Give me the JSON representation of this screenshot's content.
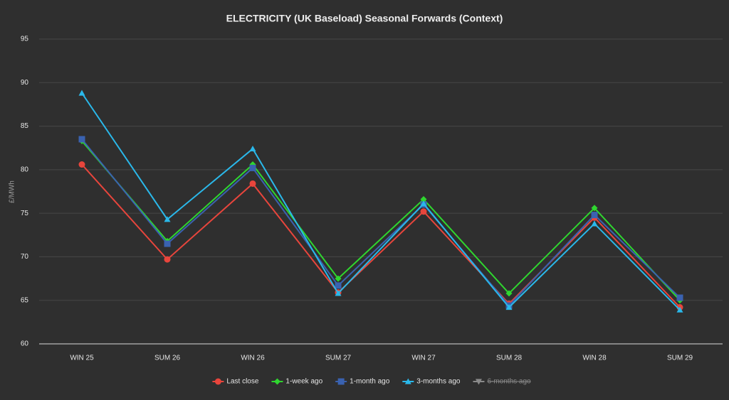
{
  "chart_data": {
    "type": "line",
    "title": "ELECTRICITY (UK Baseload) Seasonal Forwards (Context)",
    "y_label": "£/MWh",
    "categories": [
      "WIN 25",
      "SUM 26",
      "WIN 26",
      "SUM 27",
      "WIN 27",
      "SUM 28",
      "WIN 28",
      "SUM 29"
    ],
    "ylim": [
      60,
      95
    ],
    "yticks": [
      60,
      65,
      70,
      75,
      80,
      85,
      90,
      95
    ],
    "grid": true,
    "legend": "bottom",
    "series": [
      {
        "name": "Last close",
        "color": "#e8453c",
        "marker": "circle",
        "values": [
          80.6,
          69.7,
          78.4,
          65.9,
          75.2,
          64.6,
          74.5,
          64.2
        ]
      },
      {
        "name": "1-week ago",
        "color": "#2fd62f",
        "marker": "diamond",
        "values": [
          83.3,
          71.8,
          80.6,
          67.5,
          76.6,
          65.8,
          75.6,
          65.0
        ]
      },
      {
        "name": "1-month ago",
        "color": "#3a62b0",
        "marker": "square",
        "values": [
          83.5,
          71.5,
          80.2,
          66.7,
          76.0,
          64.4,
          74.8,
          65.3
        ]
      },
      {
        "name": "3-months ago",
        "color": "#2ab8ea",
        "marker": "triangle",
        "values": [
          88.8,
          74.3,
          82.4,
          65.8,
          76.1,
          64.2,
          73.8,
          63.9
        ]
      },
      {
        "name": "6-months ago",
        "color": "#8a8a8a",
        "marker": "triangle-down",
        "hidden": true,
        "values": [
          null,
          null,
          null,
          null,
          null,
          null,
          null,
          null
        ]
      }
    ]
  }
}
